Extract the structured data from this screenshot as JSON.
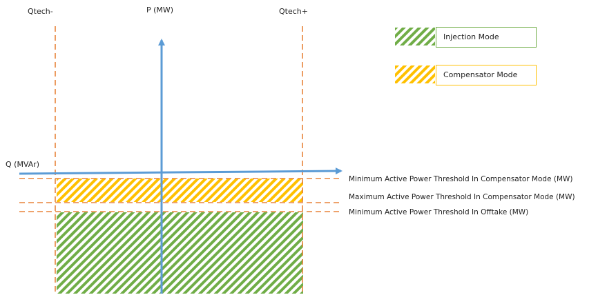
{
  "colors": {
    "orange": "#e8833a",
    "blue": "#5b9bd5",
    "injection": "#70ad47",
    "compensator": "#ffc000"
  },
  "labels": {
    "qtech_minus": "Qtech-",
    "qtech_plus": "Qtech+",
    "p_axis": "P (MW)",
    "q_axis": "Q (MVAr)",
    "min_threshold_comp": "Minimum Active Power Threshold In Compensator Mode (MW)",
    "max_threshold_comp": "Maximum Active Power Threshold In Compensator Mode (MW)",
    "min_threshold_offtake": "Minimum Active Power Threshold In Offtake (MW)"
  },
  "legend": {
    "injection": "Injection Mode",
    "compensator": "Compensator Mode"
  }
}
